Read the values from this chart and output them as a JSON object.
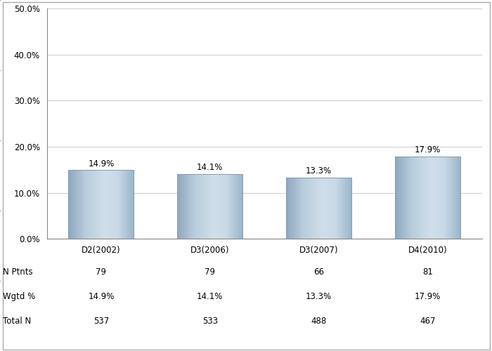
{
  "categories": [
    "D2(2002)",
    "D3(2006)",
    "D3(2007)",
    "D4(2010)"
  ],
  "values": [
    14.9,
    14.1,
    13.3,
    17.9
  ],
  "n_ptnts": [
    79,
    79,
    66,
    81
  ],
  "wgtd_pct": [
    "14.9%",
    "14.1%",
    "13.3%",
    "17.9%"
  ],
  "total_n": [
    537,
    533,
    488,
    467
  ],
  "ylim": [
    0,
    50
  ],
  "yticks": [
    0,
    10,
    20,
    30,
    40,
    50
  ],
  "ytick_labels": [
    "0.0%",
    "10.0%",
    "20.0%",
    "30.0%",
    "40.0%",
    "50.0%"
  ],
  "background_color": "#ffffff",
  "plot_bg_color": "#ffffff",
  "grid_color": "#d0d0d0",
  "label_fontsize": 8.5,
  "tick_fontsize": 8.5,
  "table_fontsize": 8.5,
  "row_labels": [
    "N Ptnts",
    "Wgtd %",
    "Total N"
  ],
  "bar_width": 0.6
}
